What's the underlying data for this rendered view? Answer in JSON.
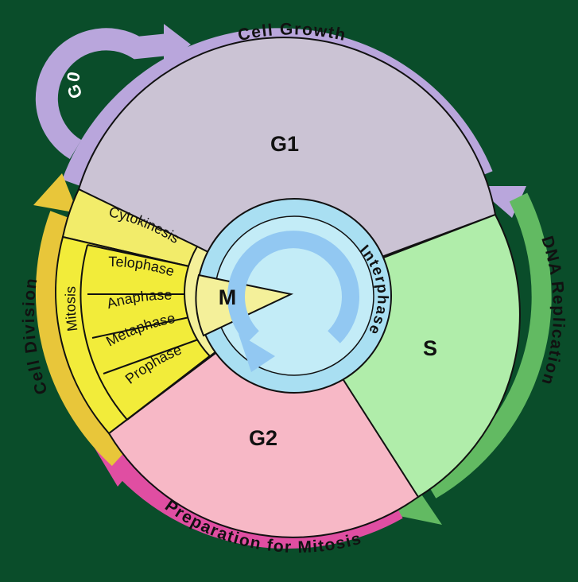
{
  "diagram": {
    "phases": {
      "g1": "G1",
      "s": "S",
      "g2": "G2",
      "m": "M",
      "g0": "G0"
    },
    "arrows": {
      "cell_growth": "Cell Growth",
      "dna_replication": "DNA Replication",
      "preparation_for_mitosis": "Preparation for Mitosis",
      "cell_division": "Cell Division"
    },
    "mitosis": {
      "label": "Mitosis",
      "stages": [
        "Telophase",
        "Anaphase",
        "Metaphase",
        "Prophase"
      ],
      "cytokinesis": "Cytokinesis"
    },
    "center": {
      "label": "Interphase"
    },
    "colors": {
      "background": "#0a4d2a",
      "g1": "#cbc3d4",
      "s": "#b0edaa",
      "g2": "#f7b8c6",
      "m_wedge": "#f4f09a",
      "mitosis_bands": "#f2ec3a",
      "cytokinesis_band": "#f2ec6a",
      "center_outer": "#a9dff2",
      "center_inner": "#c3ecf7",
      "arrow_growth": "#b9a6dc",
      "arrow_dna": "#62ba62",
      "arrow_prep": "#e04ea2",
      "arrow_division": "#e8c63a",
      "center_arrow": "#92c8f2"
    }
  }
}
